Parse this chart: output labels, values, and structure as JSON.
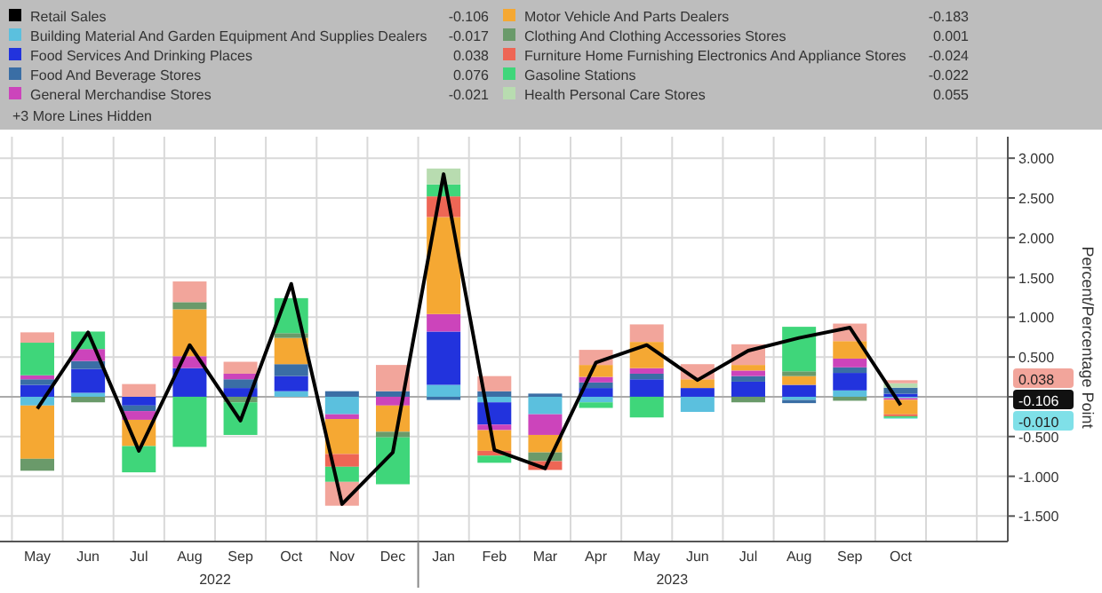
{
  "chart_data": {
    "type": "bar",
    "stacked": true,
    "ylabel": "Percent/Percentage Point",
    "categories": [
      "May",
      "Jun",
      "Jul",
      "Aug",
      "Sep",
      "Oct",
      "Nov",
      "Dec",
      "Jan",
      "Feb",
      "Mar",
      "Apr",
      "May",
      "Jun",
      "Jul",
      "Aug",
      "Sep",
      "Oct"
    ],
    "series": [
      {
        "name": "Retail Sales",
        "type": "line",
        "color": "#000000",
        "values": [
          -0.15,
          0.81,
          -0.68,
          0.65,
          -0.3,
          1.42,
          -1.35,
          -0.7,
          2.8,
          -0.67,
          -0.9,
          0.43,
          0.65,
          0.21,
          0.58,
          0.74,
          0.87,
          -0.106
        ]
      },
      {
        "name": "Building Material And Garden Equipment And Supplies Dealers",
        "color": "#5bc0de",
        "values": [
          -0.11,
          0.05,
          0,
          0,
          0,
          0.07,
          -0.22,
          0,
          0.15,
          -0.07,
          -0.22,
          -0.07,
          0,
          -0.19,
          0,
          -0.04,
          0.08,
          -0.017
        ]
      },
      {
        "name": "Food Services And Drinking Places",
        "color": "#2233dd",
        "values": [
          0.15,
          0.3,
          -0.11,
          0.36,
          0.11,
          0.19,
          0,
          0,
          0.67,
          -0.28,
          0,
          0.11,
          0.22,
          0.11,
          0.19,
          0.15,
          0.22,
          0.038
        ]
      },
      {
        "name": "Food And Beverage Stores",
        "color": "#3a6ea5",
        "values": [
          0.07,
          0.1,
          -0.07,
          0,
          0.11,
          0.15,
          0.07,
          0.07,
          -0.04,
          0.07,
          0.04,
          0.07,
          0.07,
          0,
          0.07,
          -0.04,
          0.07,
          0.076
        ]
      },
      {
        "name": "General Merchandise Stores",
        "color": "#cc44bb",
        "values": [
          0.05,
          0.15,
          -0.11,
          0.15,
          0.07,
          0,
          -0.06,
          -0.11,
          0.22,
          -0.07,
          -0.26,
          0.07,
          0.07,
          0,
          0.07,
          0,
          0.11,
          -0.021
        ]
      },
      {
        "name": "Motor Vehicle And Parts Dealers",
        "color": "#f5a833",
        "values": [
          -0.67,
          0,
          -0.33,
          0.59,
          0,
          0.33,
          -0.44,
          -0.33,
          1.22,
          -0.26,
          -0.22,
          0.15,
          0.33,
          0.11,
          0.07,
          0.11,
          0.22,
          -0.183
        ]
      },
      {
        "name": "Clothing And Clothing Accessories Stores",
        "color": "#6a9a6a",
        "values": [
          -0.15,
          -0.07,
          0,
          0.09,
          -0.07,
          0.06,
          0,
          -0.07,
          0,
          0,
          -0.11,
          0,
          0,
          0,
          -0.07,
          0.06,
          -0.05,
          0.001
        ]
      },
      {
        "name": "Furniture Home Furnishing Electronics And Appliance Stores",
        "color": "#ee6655",
        "values": [
          0,
          0,
          0,
          0,
          0,
          0,
          -0.16,
          0,
          0.26,
          -0.06,
          -0.11,
          0,
          0,
          0,
          0,
          0,
          0,
          -0.024
        ]
      },
      {
        "name": "Gasoline Stations",
        "color": "#3fd67a",
        "values": [
          0.41,
          0.22,
          -0.33,
          -0.63,
          -0.41,
          0.44,
          -0.19,
          -0.59,
          0.15,
          -0.09,
          0,
          -0.07,
          -0.26,
          0,
          0,
          0.56,
          0,
          -0.022
        ]
      },
      {
        "name": "Health Personal Care Stores",
        "color": "#b8dcb0",
        "values": [
          0,
          0,
          0,
          0,
          0,
          0,
          0,
          0,
          0.2,
          0,
          0,
          0,
          0,
          0,
          0,
          0,
          0,
          0.055
        ]
      },
      {
        "color": "#f2a59b",
        "values": [
          0.13,
          0,
          0.16,
          0.26,
          0.15,
          0,
          -0.3,
          0.33,
          0,
          0.19,
          0,
          0.19,
          0.22,
          0.19,
          0.26,
          0,
          0.22,
          0.038
        ]
      },
      {
        "color": "#7fe0e8",
        "values": [
          0,
          0,
          0,
          0,
          0,
          0,
          0,
          0,
          0,
          0,
          0,
          0,
          0,
          0,
          0,
          0,
          0,
          -0.01
        ]
      }
    ],
    "ylim": [
      -1.82,
      3.27
    ],
    "yticks": [
      {
        "value": -1.5,
        "label": "-1.500"
      },
      {
        "value": -1,
        "label": "-1.000"
      },
      {
        "value": -0.5,
        "label": "-0.500"
      },
      {
        "value": 0,
        "label": null
      },
      {
        "value": 0.5,
        "label": "0.500"
      },
      {
        "value": 1,
        "label": "1.000"
      },
      {
        "value": 1.5,
        "label": "1.500"
      },
      {
        "value": 2,
        "label": "2.000"
      },
      {
        "value": 2.5,
        "label": "2.500"
      },
      {
        "value": 3,
        "label": "3.000"
      }
    ],
    "grid": true,
    "legend": "top",
    "annotations": [
      "+3 More Lines Hidden",
      "2022",
      "2023",
      "0.038",
      "-0.106",
      "-0.010",
      "-0.106",
      "-0.017",
      "0.038",
      "0.076",
      "-0.021",
      "-0.183",
      "0.001",
      "-0.024",
      "-0.022",
      "0.055"
    ]
  }
}
